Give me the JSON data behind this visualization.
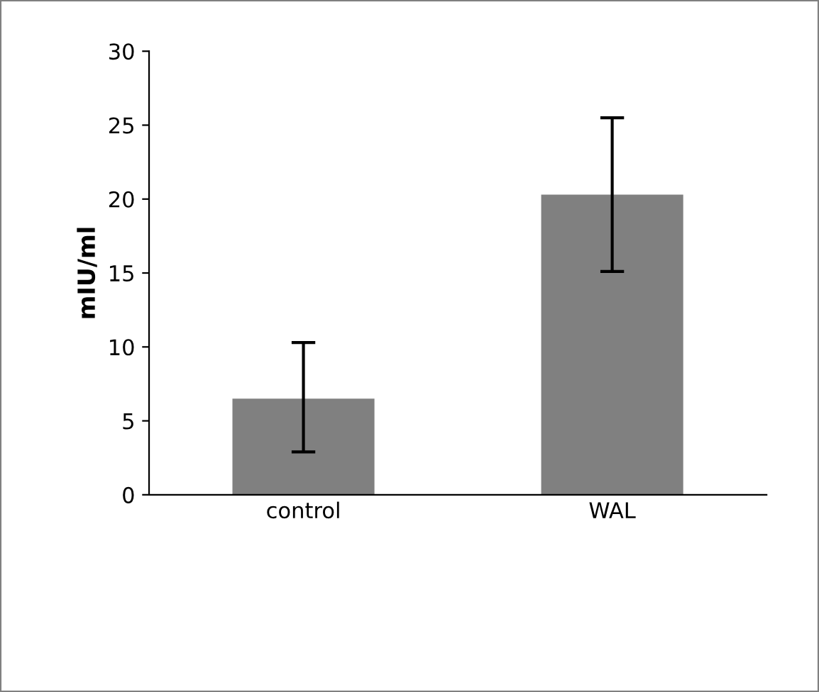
{
  "chart_data": {
    "type": "bar",
    "ylabel": "mIU/ml",
    "categories": [
      "control",
      "WAL"
    ],
    "values": [
      6.5,
      20.3
    ],
    "color": "#808080",
    "errors": [
      [
        2.9,
        10.3
      ],
      [
        15.1,
        25.5
      ]
    ],
    "ylim": [
      0,
      30
    ],
    "yticks": [
      0,
      5,
      10,
      15,
      20,
      25,
      30
    ],
    "grid": false,
    "legend": false
  }
}
